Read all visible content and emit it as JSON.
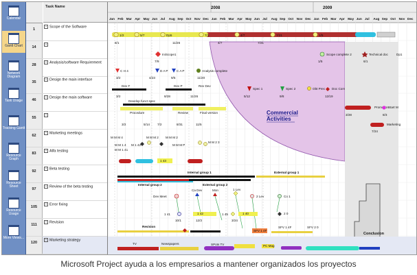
{
  "viewbar": {
    "items": [
      {
        "label": "Calendar",
        "icon": "calendar-icon",
        "active": false
      },
      {
        "label": "Gantt Chart",
        "icon": "gantt-chart-icon",
        "active": true
      },
      {
        "label": "Network Diagram",
        "icon": "network-diagram-icon",
        "active": false
      },
      {
        "label": "Task Usage",
        "icon": "task-usage-icon",
        "active": false
      },
      {
        "label": "Tracking Gantt",
        "icon": "tracking-gantt-icon",
        "active": false
      },
      {
        "label": "Resource Graph",
        "icon": "resource-graph-icon",
        "active": false
      },
      {
        "label": "Resource Sheet",
        "icon": "resource-sheet-icon",
        "active": false
      },
      {
        "label": "Resource Usage",
        "icon": "resource-usage-icon",
        "active": false
      },
      {
        "label": "More Views...",
        "icon": "more-views-icon",
        "active": false
      }
    ]
  },
  "table": {
    "header_name": "Task Name",
    "rows": [
      {
        "id": "1",
        "name": "Scope of the Software"
      },
      {
        "id": "14",
        "name": ""
      },
      {
        "id": "28",
        "name": "Analysis/software Requirement"
      },
      {
        "id": "35",
        "name": "Design the main interface"
      },
      {
        "id": "46",
        "name": "Design the main software"
      },
      {
        "id": "55",
        "name": ""
      },
      {
        "id": "62",
        "name": "Marketing meetings"
      },
      {
        "id": "83",
        "name": "Alfa testing"
      },
      {
        "id": "92",
        "name": "Beta testing"
      },
      {
        "id": "97",
        "name": "Review of the beta testing"
      },
      {
        "id": "105",
        "name": "Error fixing"
      },
      {
        "id": "111",
        "name": "Revision"
      },
      {
        "id": "120",
        "name": "Marketing strategy"
      }
    ]
  },
  "timescale": {
    "years": [
      {
        "label": "2008"
      },
      {
        "label": "2009"
      }
    ],
    "months": [
      "Jan",
      "Feb",
      "Mar",
      "Apr",
      "May",
      "Jun",
      "Jul",
      "Aug",
      "Sep",
      "Oct",
      "Nov",
      "Dec",
      "Jan",
      "Feb",
      "Mar",
      "Apr",
      "May",
      "Jun",
      "Jul",
      "Aug",
      "Sep",
      "Oct",
      "Nov",
      "Dec",
      "Jan",
      "Feb",
      "Mar",
      "Apr",
      "May",
      "Jun",
      "Jul",
      "Aug",
      "Sep",
      "Oct",
      "Nov",
      "Dec"
    ]
  },
  "chart": {
    "annotations": {
      "commercial": "Commercial Activities",
      "conclusion": "Conclusion"
    },
    "labels": [
      "1/2",
      "5/7",
      "Dp5",
      "7/1",
      "12/4",
      "4/7",
      "7/21",
      "1/5",
      "8/1",
      "11/26",
      "4/7",
      "7/21",
      "IniScope1",
      "7/9",
      "Scope complete 2",
      "1/5",
      "Technical doc",
      "Dp1",
      "6/1",
      "C H 4",
      "D A P",
      "C A P",
      "Analysis complete",
      "3/2",
      "4/23",
      "9/5",
      "11/20",
      "Spec 1",
      "Spec 2",
      "Obt Prec",
      "Doc Com",
      "5/12",
      "9/8",
      "12/19",
      "Dev F",
      "Dev P",
      "Rev Dev",
      "3/2",
      "8/28",
      "11/26",
      "Develop funct spec",
      "Promotion",
      "Start M",
      "Procedure",
      "Review",
      "Final version",
      "3/28",
      "8/3",
      "3/2",
      "5/14",
      "7/2",
      "8/31",
      "11/5",
      "Marketing",
      "7/24",
      "M M M 4",
      "M M M 2",
      "M M M 2",
      "M M M P",
      "M M 2 3",
      "M 1 42",
      "M M 1 4",
      "M M 1 41",
      "1 43",
      "Internal group 1",
      "External group 1",
      "Internal group 2",
      "External group 2",
      "Dev Meet",
      "Ca Dev",
      "Mon",
      "1 Lev",
      "2 Lev",
      "Co 1",
      "1 41",
      "10/1",
      "12/3",
      "1 42",
      "1 45",
      "3/24",
      "1 40",
      "2 0",
      "Revision",
      "SFV 1 4F",
      "SFV 2 0",
      "TV",
      "Newspapers",
      "SPots TV",
      "PC Mag"
    ]
  },
  "caption": "Microsoft Project ayuda a los empresarios a mantener organizados los proyectos"
}
